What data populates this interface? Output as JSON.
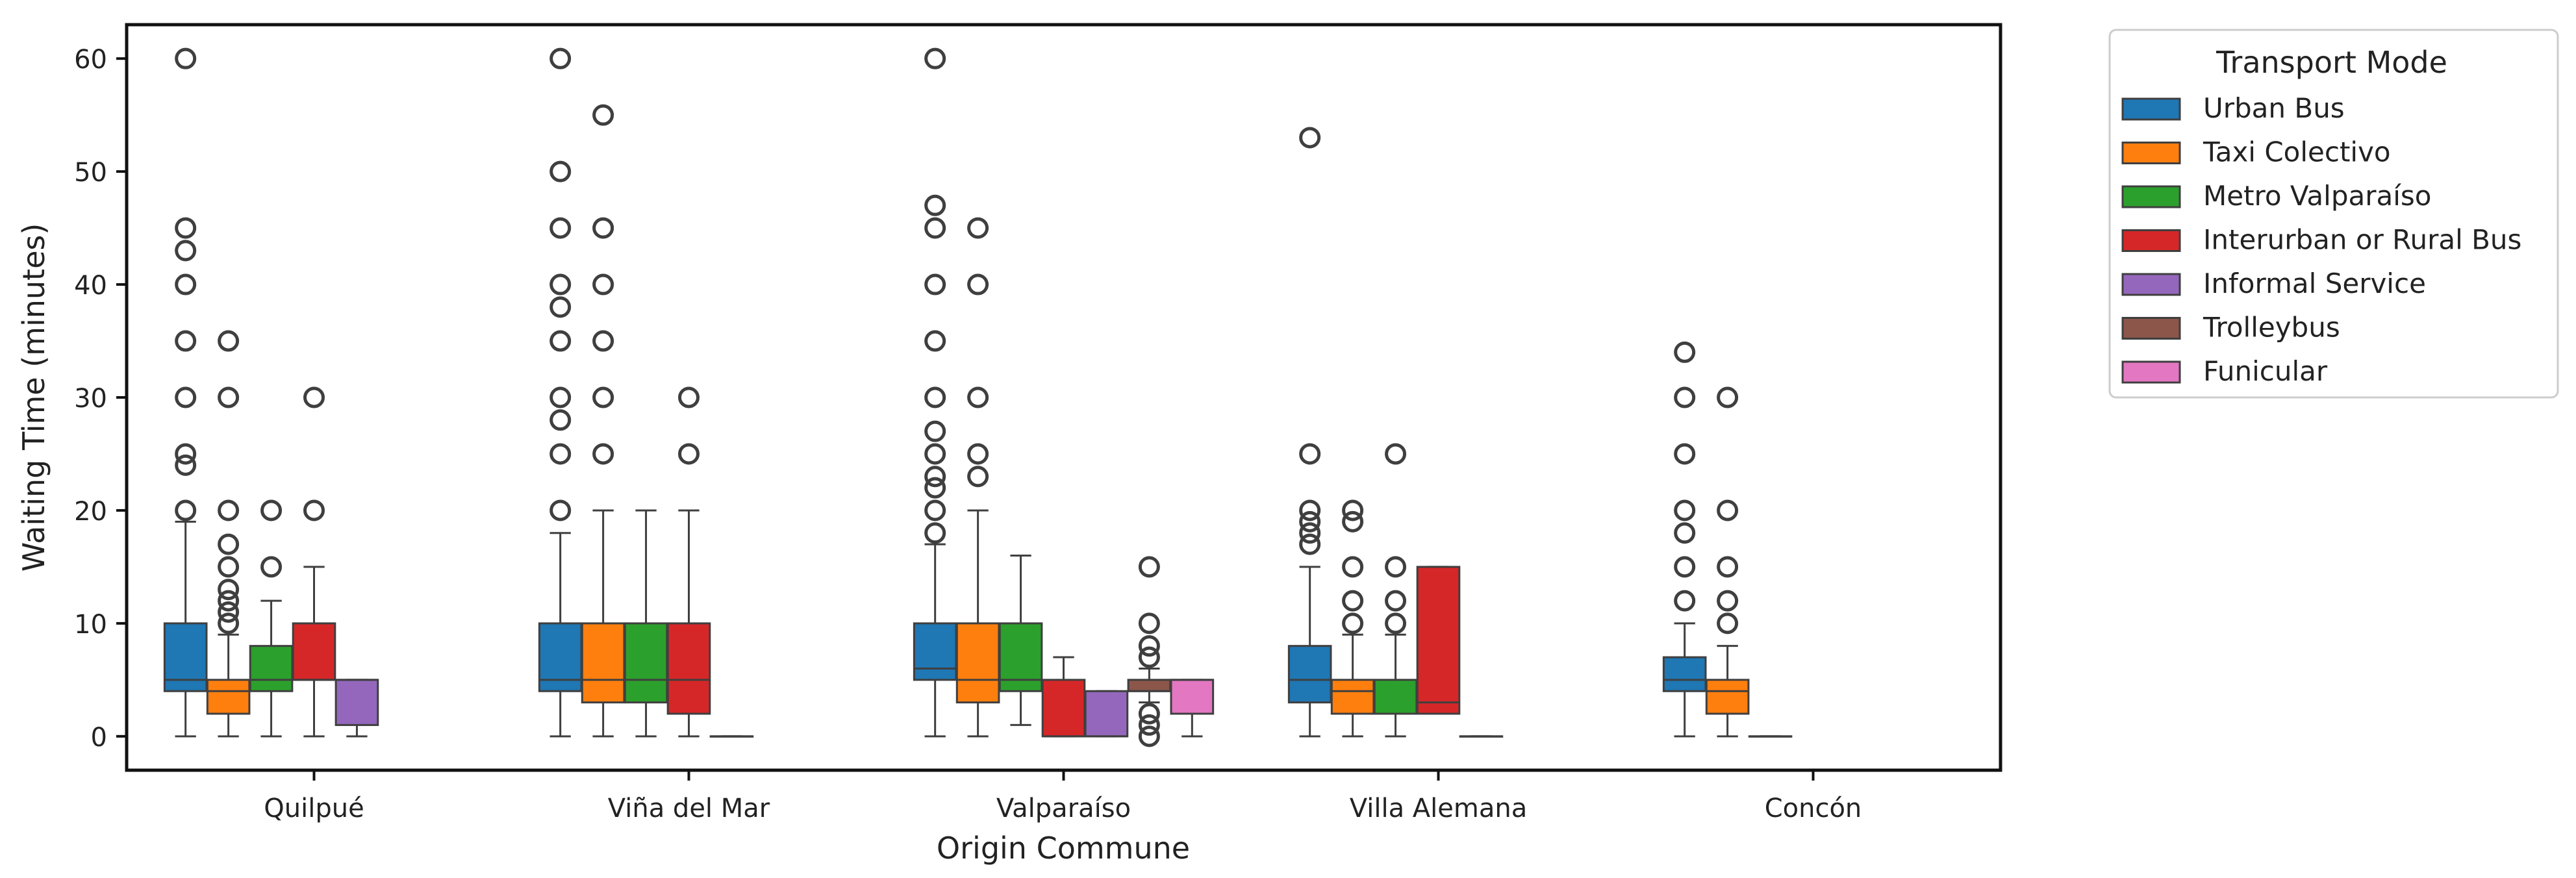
{
  "chart_data": {
    "type": "box",
    "xlabel": "Origin Commune",
    "ylabel": "Waiting Time (minutes)",
    "ylim": [
      -3,
      63
    ],
    "yticks": [
      0,
      10,
      20,
      30,
      40,
      50,
      60
    ],
    "grid": false,
    "legend": {
      "title": "Transport Mode",
      "placement": "outside-right-top"
    },
    "categories": [
      "Quilpué",
      "Viña del Mar",
      "Valparaíso",
      "Villa Alemana",
      "Concón"
    ],
    "series": [
      {
        "name": "Urban Bus",
        "color": "#1f77b4"
      },
      {
        "name": "Taxi Colectivo",
        "color": "#ff7f0e"
      },
      {
        "name": "Metro Valparaíso",
        "color": "#2ca02c"
      },
      {
        "name": "Interurban or Rural Bus",
        "color": "#d62728"
      },
      {
        "name": "Informal Service",
        "color": "#9467bd"
      },
      {
        "name": "Trolleybus",
        "color": "#8c564b"
      },
      {
        "name": "Funicular",
        "color": "#e377c2"
      }
    ],
    "boxes": [
      {
        "category": "Quilpué",
        "series": "Urban Bus",
        "whisker_low": 0,
        "q1": 4,
        "median": 5,
        "q3": 10,
        "whisker_high": 19,
        "outliers": [
          20,
          24,
          25,
          30,
          35,
          40,
          43,
          45,
          60
        ]
      },
      {
        "category": "Quilpué",
        "series": "Taxi Colectivo",
        "whisker_low": 0,
        "q1": 2,
        "median": 4,
        "q3": 5,
        "whisker_high": 9,
        "outliers": [
          10,
          11,
          12,
          13,
          15,
          17,
          20,
          30,
          35
        ]
      },
      {
        "category": "Quilpué",
        "series": "Metro Valparaíso",
        "whisker_low": 0,
        "q1": 4,
        "median": 5,
        "q3": 8,
        "whisker_high": 12,
        "outliers": [
          15,
          20
        ]
      },
      {
        "category": "Quilpué",
        "series": "Interurban or Rural Bus",
        "whisker_low": 0,
        "q1": 5,
        "median": 5,
        "q3": 10,
        "whisker_high": 15,
        "outliers": [
          20,
          30
        ]
      },
      {
        "category": "Quilpué",
        "series": "Informal Service",
        "whisker_low": 0,
        "q1": 1,
        "median": 5,
        "q3": 5,
        "whisker_high": 5,
        "outliers": []
      },
      {
        "category": "Viña del Mar",
        "series": "Urban Bus",
        "whisker_low": 0,
        "q1": 4,
        "median": 5,
        "q3": 10,
        "whisker_high": 18,
        "outliers": [
          20,
          25,
          28,
          30,
          35,
          38,
          40,
          45,
          50,
          60
        ]
      },
      {
        "category": "Viña del Mar",
        "series": "Taxi Colectivo",
        "whisker_low": 0,
        "q1": 3,
        "median": 5,
        "q3": 10,
        "whisker_high": 20,
        "outliers": [
          25,
          30,
          35,
          40,
          45,
          55
        ]
      },
      {
        "category": "Viña del Mar",
        "series": "Metro Valparaíso",
        "whisker_low": 0,
        "q1": 3,
        "median": 5,
        "q3": 10,
        "whisker_high": 20,
        "outliers": []
      },
      {
        "category": "Viña del Mar",
        "series": "Interurban or Rural Bus",
        "whisker_low": 0,
        "q1": 2,
        "median": 5,
        "q3": 10,
        "whisker_high": 20,
        "outliers": [
          25,
          30
        ]
      },
      {
        "category": "Viña del Mar",
        "series": "Informal Service",
        "whisker_low": 0,
        "q1": 0,
        "median": 0,
        "q3": 0,
        "whisker_high": 0,
        "outliers": []
      },
      {
        "category": "Valparaíso",
        "series": "Urban Bus",
        "whisker_low": 0,
        "q1": 5,
        "median": 6,
        "q3": 10,
        "whisker_high": 17,
        "outliers": [
          18,
          20,
          22,
          23,
          25,
          27,
          30,
          35,
          40,
          45,
          47,
          60
        ]
      },
      {
        "category": "Valparaíso",
        "series": "Taxi Colectivo",
        "whisker_low": 0,
        "q1": 3,
        "median": 5,
        "q3": 10,
        "whisker_high": 20,
        "outliers": [
          23,
          25,
          30,
          40,
          45
        ]
      },
      {
        "category": "Valparaíso",
        "series": "Metro Valparaíso",
        "whisker_low": 1,
        "q1": 4,
        "median": 5,
        "q3": 10,
        "whisker_high": 16,
        "outliers": []
      },
      {
        "category": "Valparaíso",
        "series": "Interurban or Rural Bus",
        "whisker_low": 0,
        "q1": 0,
        "median": 0,
        "q3": 5,
        "whisker_high": 7,
        "outliers": []
      },
      {
        "category": "Valparaíso",
        "series": "Informal Service",
        "whisker_low": 0,
        "q1": 0,
        "median": 0,
        "q3": 4,
        "whisker_high": 4,
        "outliers": []
      },
      {
        "category": "Valparaíso",
        "series": "Trolleybus",
        "whisker_low": 3,
        "q1": 4,
        "median": 4,
        "q3": 5,
        "whisker_high": 6,
        "outliers": [
          0,
          1,
          2,
          7,
          8,
          10,
          15
        ]
      },
      {
        "category": "Valparaíso",
        "series": "Funicular",
        "whisker_low": 0,
        "q1": 2,
        "median": 5,
        "q3": 5,
        "whisker_high": 5,
        "outliers": []
      },
      {
        "category": "Villa Alemana",
        "series": "Urban Bus",
        "whisker_low": 0,
        "q1": 3,
        "median": 5,
        "q3": 8,
        "whisker_high": 15,
        "outliers": [
          17,
          18,
          19,
          20,
          25,
          53
        ]
      },
      {
        "category": "Villa Alemana",
        "series": "Taxi Colectivo",
        "whisker_low": 0,
        "q1": 2,
        "median": 4,
        "q3": 5,
        "whisker_high": 9,
        "outliers": [
          10,
          12,
          15,
          19,
          20
        ]
      },
      {
        "category": "Villa Alemana",
        "series": "Metro Valparaíso",
        "whisker_low": 0,
        "q1": 2,
        "median": 2,
        "q3": 5,
        "whisker_high": 9,
        "outliers": [
          10,
          12,
          15,
          25
        ]
      },
      {
        "category": "Villa Alemana",
        "series": "Interurban or Rural Bus",
        "whisker_low": 2,
        "q1": 2,
        "median": 3,
        "q3": 15,
        "whisker_high": 15,
        "outliers": []
      },
      {
        "category": "Villa Alemana",
        "series": "Informal Service",
        "whisker_low": 0,
        "q1": 0,
        "median": 0,
        "q3": 0,
        "whisker_high": 0,
        "outliers": []
      },
      {
        "category": "Concón",
        "series": "Urban Bus",
        "whisker_low": 0,
        "q1": 4,
        "median": 5,
        "q3": 7,
        "whisker_high": 10,
        "outliers": [
          12,
          15,
          18,
          20,
          25,
          30,
          34
        ]
      },
      {
        "category": "Concón",
        "series": "Taxi Colectivo",
        "whisker_low": 0,
        "q1": 2,
        "median": 4,
        "q3": 5,
        "whisker_high": 8,
        "outliers": [
          10,
          12,
          15,
          20,
          30
        ]
      },
      {
        "category": "Concón",
        "series": "Metro Valparaíso",
        "whisker_low": 0,
        "q1": 0,
        "median": 0,
        "q3": 0,
        "whisker_high": 0,
        "outliers": []
      }
    ]
  }
}
